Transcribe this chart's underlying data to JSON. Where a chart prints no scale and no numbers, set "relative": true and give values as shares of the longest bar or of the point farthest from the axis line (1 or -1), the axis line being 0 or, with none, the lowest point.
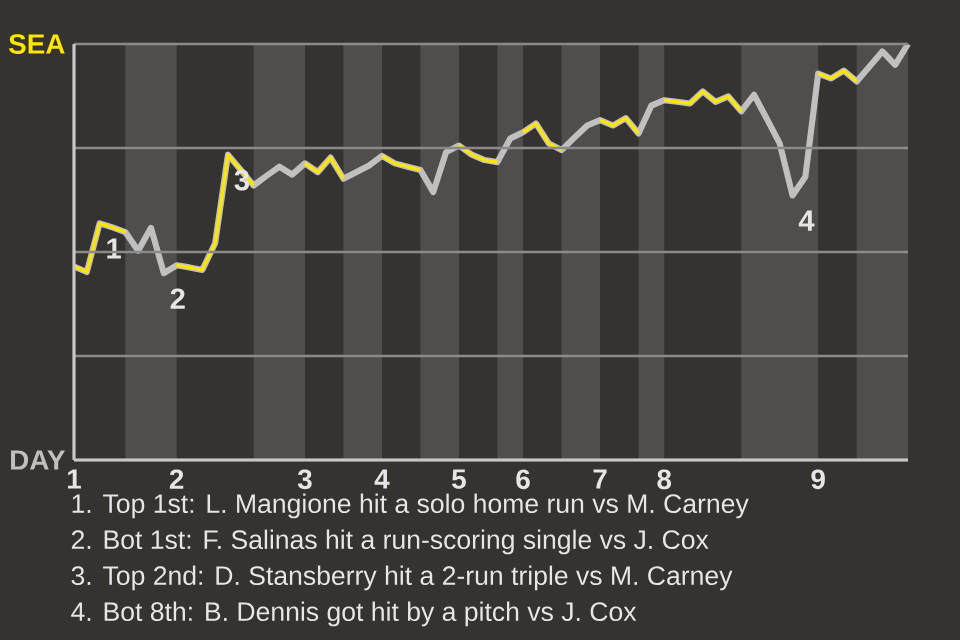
{
  "chart_data": {
    "type": "line",
    "relative": true,
    "categories": [
      "1",
      null,
      null,
      null,
      null,
      null,
      null,
      null,
      "2",
      null,
      null,
      null,
      null,
      null,
      null,
      null,
      null,
      null,
      "3",
      null,
      null,
      null,
      null,
      null,
      "4",
      null,
      null,
      null,
      null,
      null,
      "5",
      null,
      null,
      null,
      null,
      "6",
      null,
      null,
      null,
      null,
      null,
      "7",
      null,
      null,
      null,
      null,
      "8",
      null,
      null,
      null,
      null,
      null,
      null,
      null,
      null,
      null,
      null,
      null,
      "9",
      null,
      null,
      null,
      null,
      null,
      null,
      null
    ],
    "series": [
      {
        "name": "SEA",
        "color": "#ffe600",
        "values": [
          0.465,
          0.452,
          0.569,
          0.559,
          0.548,
          null,
          null,
          null,
          0.468,
          0.463,
          0.457,
          0.521,
          0.734,
          0.697,
          0.66,
          null,
          null,
          null,
          0.713,
          0.692,
          0.727,
          0.676,
          null,
          null,
          0.731,
          0.713,
          0.705,
          0.697,
          null,
          null,
          0.756,
          0.734,
          0.721,
          0.716,
          null,
          0.788,
          0.809,
          0.761,
          0.745,
          null,
          null,
          0.817,
          0.804,
          0.822,
          0.785,
          null,
          0.865,
          0.861,
          0.857,
          0.886,
          0.861,
          0.874,
          0.838,
          null,
          null,
          null,
          null,
          null,
          0.929,
          0.917,
          0.936,
          0.91,
          null,
          null,
          null,
          null
        ]
      },
      {
        "name": "DAY",
        "color": "#c0c0c0",
        "values": [
          0.465,
          0.452,
          0.569,
          0.559,
          0.548,
          0.503,
          0.558,
          0.449,
          0.468,
          0.463,
          0.457,
          0.521,
          0.734,
          0.697,
          0.66,
          0.683,
          0.705,
          0.686,
          0.713,
          0.692,
          0.727,
          0.676,
          0.692,
          0.708,
          0.731,
          0.713,
          0.705,
          0.697,
          0.644,
          0.74,
          0.756,
          0.734,
          0.721,
          0.716,
          0.773,
          0.788,
          0.809,
          0.761,
          0.745,
          0.775,
          0.804,
          0.817,
          0.804,
          0.822,
          0.785,
          0.852,
          0.865,
          0.861,
          0.857,
          0.886,
          0.861,
          0.874,
          0.838,
          0.878,
          0.82,
          0.761,
          0.636,
          0.681,
          0.929,
          0.917,
          0.936,
          0.91,
          0.946,
          0.982,
          0.95,
          1.0
        ]
      }
    ],
    "grid": "y",
    "annotations": [
      {
        "text": "1",
        "y": 0.569
      },
      {
        "text": "2",
        "y": 0.449
      },
      {
        "text": "3",
        "y": 0.734
      },
      {
        "text": "4",
        "y": 0.636
      },
      "1. Top 1st: L. Mangione hit a solo home run vs M. Carney",
      "2. Bot 1st: F. Salinas hit a run-scoring single vs J. Cox",
      "3. Top 2nd: D. Stansberry hit a 2-run triple vs M. Carney",
      "4. Bot 8th: B. Dennis got hit by a pitch vs J. Cox"
    ]
  }
}
